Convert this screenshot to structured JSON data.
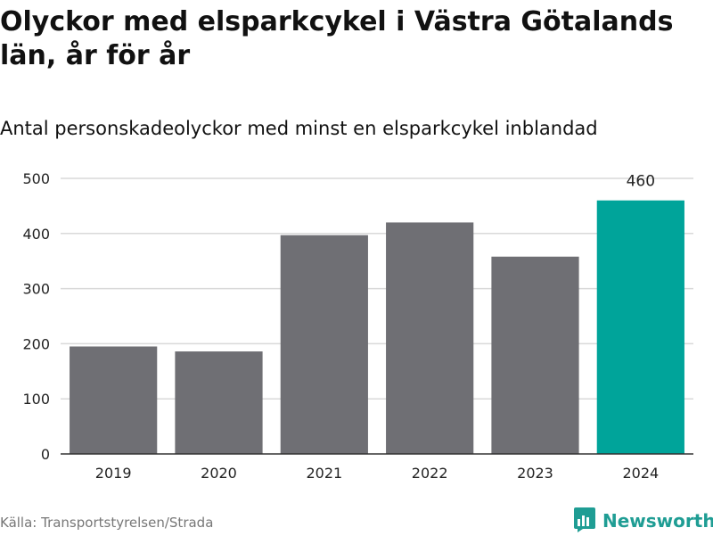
{
  "title": "Olyckor med elsparkcykel i Västra Götalands län, år för år",
  "subtitle": "Antal personskadeolyckor med minst en elsparkcykel inblandad",
  "source": "Källa: Transportstyrelsen/Strada",
  "brand": {
    "name": "Newsworthy",
    "icon": "newsworthy-logo-icon",
    "color": "#1f9d94"
  },
  "colors": {
    "bar": "#6f6f74",
    "highlight": "#00a49a",
    "grid": "#d9d9d9",
    "axis": "#333333"
  },
  "chart_data": {
    "type": "bar",
    "categories": [
      "2019",
      "2020",
      "2021",
      "2022",
      "2023",
      "2024"
    ],
    "values": [
      195,
      186,
      397,
      420,
      358,
      460
    ],
    "highlight_index": 5,
    "data_labels": [
      {
        "index": 5,
        "text": "460"
      }
    ],
    "title": "Olyckor med elsparkcykel i Västra Götalands län, år för år",
    "subtitle": "Antal personskadeolyckor med minst en elsparkcykel inblandad",
    "xlabel": "",
    "ylabel": "",
    "ylim": [
      0,
      500
    ],
    "yticks": [
      0,
      100,
      200,
      300,
      400,
      500
    ],
    "grid": true,
    "legend": "none"
  }
}
